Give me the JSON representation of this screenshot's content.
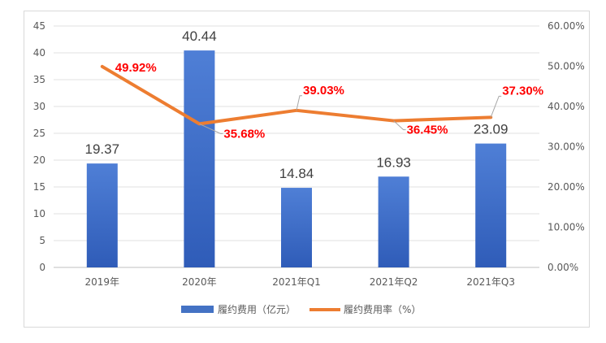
{
  "chart_data": {
    "type": "bar",
    "categories": [
      "2019年",
      "2020年",
      "2021年Q1",
      "2021年Q2",
      "2021年Q3"
    ],
    "series": [
      {
        "name": "履约费用（亿元）",
        "type": "bar",
        "axis": "left",
        "values": [
          19.37,
          40.44,
          14.84,
          16.93,
          23.09
        ],
        "labels": [
          "19.37",
          "40.44",
          "14.84",
          "16.93",
          "23.09"
        ],
        "color": "#4472c4"
      },
      {
        "name": "履约费用率（%）",
        "type": "line",
        "axis": "right",
        "values": [
          49.92,
          35.68,
          39.03,
          36.45,
          37.3
        ],
        "labels": [
          "49.92%",
          "35.68%",
          "39.03%",
          "36.45%",
          "37.30%"
        ],
        "color": "#ed7d31"
      }
    ],
    "ylim_left": [
      0,
      45
    ],
    "ylim_right": [
      0,
      60
    ],
    "yticks_left": [
      "0",
      "5",
      "10",
      "15",
      "20",
      "25",
      "30",
      "35",
      "40",
      "45"
    ],
    "yticks_right": [
      "0.00%",
      "10.00%",
      "20.00%",
      "30.00%",
      "40.00%",
      "50.00%",
      "60.00%"
    ],
    "grid": true,
    "legend": "bottom",
    "label_color": "#ff0000"
  }
}
